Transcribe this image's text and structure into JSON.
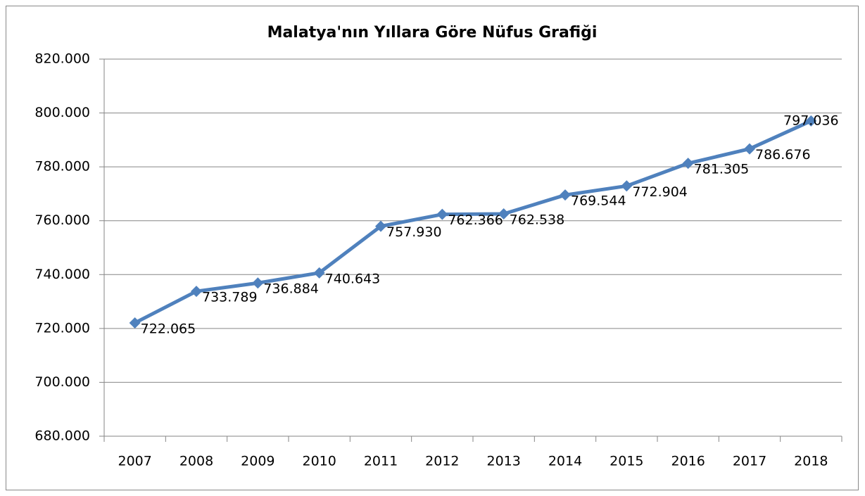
{
  "chart_data": {
    "type": "line",
    "title": "Malatya'nın Yıllara Göre Nüfus Grafiği",
    "categories": [
      "2007",
      "2008",
      "2009",
      "2010",
      "2011",
      "2012",
      "2013",
      "2014",
      "2015",
      "2016",
      "2017",
      "2018"
    ],
    "series": [
      {
        "name": "Nüfus",
        "color": "#4f81bd",
        "values": [
          722065,
          733789,
          736884,
          740643,
          757930,
          762366,
          762538,
          769544,
          772904,
          781305,
          786676,
          797036
        ],
        "value_labels": [
          "722.065",
          "733.789",
          "736.884",
          "740.643",
          "757.930",
          "762.366",
          "762.538",
          "769.544",
          "772.904",
          "781.305",
          "786.676",
          "797.036"
        ]
      }
    ],
    "ylim": [
      680000,
      820000
    ],
    "yticks": [
      {
        "value": 680000,
        "label": "680.000"
      },
      {
        "value": 700000,
        "label": "700.000"
      },
      {
        "value": 720000,
        "label": "720.000"
      },
      {
        "value": 740000,
        "label": "740.000"
      },
      {
        "value": 760000,
        "label": "760.000"
      },
      {
        "value": 780000,
        "label": "780.000"
      },
      {
        "value": 800000,
        "label": "800.000"
      },
      {
        "value": 820000,
        "label": "820.000"
      }
    ],
    "grid": true,
    "legend": false
  }
}
